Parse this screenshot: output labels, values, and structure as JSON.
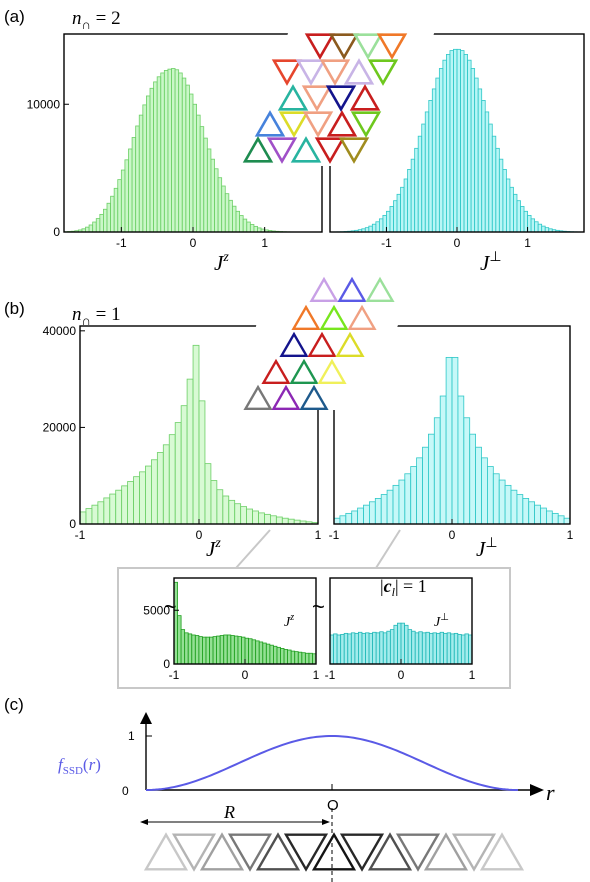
{
  "panels": {
    "a": "(a)",
    "b": "(b)",
    "c": "(c)"
  },
  "chart_data": [
    {
      "id": "a-left",
      "type": "bar",
      "color": "#9ef09a",
      "edge": "#6ccf66",
      "title": "n∩ = 2",
      "xlabel": "J^z",
      "xlim": [
        -1.8,
        1.8
      ],
      "ylim": [
        0,
        15500
      ],
      "xticks": [
        -1,
        0,
        1
      ],
      "xtick_labels": [
        "-1",
        "0",
        "1"
      ],
      "yticks": [
        0,
        10000
      ],
      "ytick_labels": [
        "0",
        "10000"
      ],
      "bin_width": 0.05,
      "x": [
        -1.775,
        -1.725,
        -1.675,
        -1.625,
        -1.575,
        -1.525,
        -1.475,
        -1.425,
        -1.375,
        -1.325,
        -1.275,
        -1.225,
        -1.175,
        -1.125,
        -1.075,
        -1.025,
        -0.975,
        -0.925,
        -0.875,
        -0.825,
        -0.775,
        -0.725,
        -0.675,
        -0.625,
        -0.575,
        -0.525,
        -0.475,
        -0.425,
        -0.375,
        -0.325,
        -0.275,
        -0.225,
        -0.175,
        -0.125,
        -0.075,
        -0.025,
        0.025,
        0.075,
        0.125,
        0.175,
        0.225,
        0.275,
        0.325,
        0.375,
        0.425,
        0.475,
        0.525,
        0.575,
        0.625,
        0.675,
        0.725,
        0.775,
        0.825,
        0.875,
        0.925,
        0.975,
        1.025,
        1.075,
        1.125,
        1.175,
        1.225,
        1.275,
        1.325,
        1.375,
        1.425,
        1.475,
        1.525,
        1.575,
        1.625,
        1.675,
        1.725,
        1.775
      ],
      "values": [
        20,
        40,
        60,
        100,
        160,
        250,
        380,
        550,
        780,
        1050,
        1380,
        1780,
        2250,
        2800,
        3420,
        4100,
        4850,
        5650,
        6500,
        7400,
        8300,
        9150,
        9950,
        10650,
        11250,
        11750,
        12150,
        12450,
        12650,
        12750,
        12800,
        12700,
        12450,
        12050,
        11500,
        10800,
        10000,
        9150,
        8250,
        7350,
        6500,
        5700,
        4950,
        4250,
        3600,
        3000,
        2480,
        2020,
        1620,
        1290,
        1010,
        780,
        590,
        440,
        320,
        230,
        165,
        115,
        80,
        55,
        38,
        25,
        16,
        10,
        6,
        4,
        2,
        1,
        0,
        0,
        0,
        0
      ]
    },
    {
      "id": "a-right",
      "type": "bar",
      "color": "#7deeee",
      "edge": "#2ec7c7",
      "xlabel": "J^⊥",
      "xlim": [
        -1.8,
        1.8
      ],
      "ylim": [
        0,
        15500
      ],
      "xticks": [
        -1,
        0,
        1
      ],
      "xtick_labels": [
        "-1",
        "0",
        "1"
      ],
      "bin_width": 0.05,
      "x": [
        -1.775,
        -1.725,
        -1.675,
        -1.625,
        -1.575,
        -1.525,
        -1.475,
        -1.425,
        -1.375,
        -1.325,
        -1.275,
        -1.225,
        -1.175,
        -1.125,
        -1.075,
        -1.025,
        -0.975,
        -0.925,
        -0.875,
        -0.825,
        -0.775,
        -0.725,
        -0.675,
        -0.625,
        -0.575,
        -0.525,
        -0.475,
        -0.425,
        -0.375,
        -0.325,
        -0.275,
        -0.225,
        -0.175,
        -0.125,
        -0.075,
        -0.025,
        0.025,
        0.075,
        0.125,
        0.175,
        0.225,
        0.275,
        0.325,
        0.375,
        0.425,
        0.475,
        0.525,
        0.575,
        0.625,
        0.675,
        0.725,
        0.775,
        0.825,
        0.875,
        0.925,
        0.975,
        1.025,
        1.075,
        1.125,
        1.175,
        1.225,
        1.275,
        1.325,
        1.375,
        1.425,
        1.475,
        1.525,
        1.575,
        1.625,
        1.675,
        1.725,
        1.775
      ],
      "values": [
        5,
        10,
        15,
        25,
        40,
        60,
        90,
        130,
        180,
        250,
        340,
        460,
        610,
        800,
        1030,
        1300,
        1620,
        2000,
        2450,
        2950,
        3500,
        4150,
        4900,
        5700,
        6550,
        7500,
        8450,
        9400,
        10300,
        11200,
        12050,
        12800,
        13450,
        13900,
        14200,
        14300,
        14300,
        14200,
        13900,
        13450,
        12800,
        12050,
        11200,
        10300,
        9400,
        8450,
        7500,
        6550,
        5700,
        4900,
        4150,
        3500,
        2950,
        2450,
        2000,
        1620,
        1300,
        1030,
        800,
        610,
        460,
        340,
        250,
        180,
        130,
        90,
        60,
        40,
        25,
        15,
        10,
        5
      ]
    },
    {
      "id": "b-left",
      "type": "bar",
      "color": "#b8f5b0",
      "edge": "#6ccf66",
      "title": "n∩ = 1",
      "xlabel": "J^z",
      "xlim": [
        -1,
        1
      ],
      "ylim": [
        0,
        41000
      ],
      "xticks": [
        -1,
        0,
        1
      ],
      "xtick_labels": [
        "-1",
        "0",
        "1"
      ],
      "yticks": [
        0,
        20000,
        40000
      ],
      "ytick_labels": [
        "0",
        "20000",
        "40000"
      ],
      "bin_width": 0.05,
      "x": [
        -0.975,
        -0.925,
        -0.875,
        -0.825,
        -0.775,
        -0.725,
        -0.675,
        -0.625,
        -0.575,
        -0.525,
        -0.475,
        -0.425,
        -0.375,
        -0.325,
        -0.275,
        -0.225,
        -0.175,
        -0.125,
        -0.075,
        -0.025,
        0.025,
        0.075,
        0.125,
        0.175,
        0.225,
        0.275,
        0.325,
        0.375,
        0.425,
        0.475,
        0.525,
        0.575,
        0.625,
        0.675,
        0.725,
        0.775,
        0.825,
        0.875,
        0.925,
        0.975
      ],
      "values": [
        2500,
        3200,
        3900,
        4600,
        5400,
        6200,
        7000,
        7900,
        8800,
        9800,
        10800,
        12000,
        13300,
        14800,
        16400,
        18500,
        21000,
        24500,
        30000,
        37000,
        25500,
        12500,
        9000,
        7100,
        5800,
        4900,
        4200,
        3600,
        3100,
        2700,
        2300,
        2000,
        1700,
        1450,
        1200,
        1000,
        800,
        620,
        450,
        300
      ]
    },
    {
      "id": "b-right",
      "type": "bar",
      "color": "#98f2f2",
      "edge": "#2ec7c7",
      "xlabel": "J^⊥",
      "xlim": [
        -1,
        1
      ],
      "ylim": [
        0,
        41000
      ],
      "xticks": [
        -1,
        0,
        1
      ],
      "xtick_labels": [
        "-1",
        "0",
        "1"
      ],
      "bin_width": 0.05,
      "x": [
        -0.975,
        -0.925,
        -0.875,
        -0.825,
        -0.775,
        -0.725,
        -0.675,
        -0.625,
        -0.575,
        -0.525,
        -0.475,
        -0.425,
        -0.375,
        -0.325,
        -0.275,
        -0.225,
        -0.175,
        -0.125,
        -0.075,
        -0.025,
        0.025,
        0.075,
        0.125,
        0.175,
        0.225,
        0.275,
        0.325,
        0.375,
        0.425,
        0.475,
        0.525,
        0.575,
        0.625,
        0.675,
        0.725,
        0.775,
        0.825,
        0.875,
        0.925,
        0.975
      ],
      "values": [
        1200,
        1700,
        2200,
        2700,
        3300,
        3900,
        4600,
        5300,
        6100,
        7000,
        8000,
        9100,
        10400,
        11900,
        13700,
        15900,
        18600,
        22000,
        26500,
        34500,
        34500,
        26500,
        22000,
        18600,
        15900,
        13700,
        11900,
        10400,
        9100,
        8000,
        7000,
        6100,
        5300,
        4600,
        3900,
        3300,
        2700,
        2200,
        1700,
        1200
      ]
    },
    {
      "id": "inset-left",
      "type": "bar",
      "color": "#3cc63c",
      "edge": "#1e9e1e",
      "title": "|c_l| = 1",
      "xlabel": "J^z",
      "xlim": [
        -1,
        1
      ],
      "ylim": [
        0,
        8000
      ],
      "xticks": [
        -1,
        0,
        1
      ],
      "xtick_labels": [
        "-1",
        "0",
        "1"
      ],
      "yticks": [
        0,
        5000
      ],
      "ytick_labels": [
        "0",
        "5000"
      ],
      "bin_width": 0.05,
      "x": [
        -0.975,
        -0.925,
        -0.875,
        -0.825,
        -0.775,
        -0.725,
        -0.675,
        -0.625,
        -0.575,
        -0.525,
        -0.475,
        -0.425,
        -0.375,
        -0.325,
        -0.275,
        -0.225,
        -0.175,
        -0.125,
        -0.075,
        -0.025,
        0.025,
        0.075,
        0.125,
        0.175,
        0.225,
        0.275,
        0.325,
        0.375,
        0.425,
        0.475,
        0.525,
        0.575,
        0.625,
        0.675,
        0.725,
        0.775,
        0.825,
        0.875,
        0.925,
        0.975
      ],
      "values": [
        7600,
        4500,
        3200,
        2900,
        2800,
        2700,
        2650,
        2550,
        2500,
        2500,
        2500,
        2550,
        2600,
        2650,
        2700,
        2700,
        2650,
        2600,
        2550,
        2500,
        2400,
        2350,
        2250,
        2150,
        2050,
        1950,
        1850,
        1750,
        1650,
        1550,
        1450,
        1350,
        1300,
        1200,
        1150,
        1100,
        1050,
        1000,
        1000,
        950
      ]
    },
    {
      "id": "inset-right",
      "type": "bar",
      "color": "#57dddd",
      "edge": "#22b8b8",
      "xlabel": "J^⊥",
      "xlim": [
        -1,
        1
      ],
      "ylim": [
        0,
        8000
      ],
      "xticks": [
        -1,
        0,
        1
      ],
      "xtick_labels": [
        "-1",
        "0",
        "1"
      ],
      "bin_width": 0.05,
      "x": [
        -0.975,
        -0.925,
        -0.875,
        -0.825,
        -0.775,
        -0.725,
        -0.675,
        -0.625,
        -0.575,
        -0.525,
        -0.475,
        -0.425,
        -0.375,
        -0.325,
        -0.275,
        -0.225,
        -0.175,
        -0.125,
        -0.075,
        -0.025,
        0.025,
        0.075,
        0.125,
        0.175,
        0.225,
        0.275,
        0.325,
        0.375,
        0.425,
        0.475,
        0.525,
        0.575,
        0.625,
        0.675,
        0.725,
        0.775,
        0.825,
        0.875,
        0.925,
        0.975
      ],
      "values": [
        2700,
        2800,
        2700,
        2750,
        2850,
        2800,
        2900,
        2850,
        2950,
        2850,
        2900,
        2850,
        2950,
        2900,
        3000,
        2900,
        3050,
        3200,
        3600,
        3800,
        3800,
        3600,
        3200,
        3050,
        2900,
        3000,
        2900,
        2950,
        2850,
        2900,
        2850,
        2950,
        2850,
        2900,
        2800,
        2850,
        2750,
        2700,
        2800,
        2700
      ]
    },
    {
      "id": "c-curve",
      "type": "line",
      "color": "#5a5ae6",
      "ylabel": "f_SSD(r)",
      "xlabel": "r",
      "xlim": [
        -1,
        1
      ],
      "ylim": [
        0,
        1
      ],
      "yticks": [
        0,
        1
      ],
      "ytick_labels": [
        "0",
        "1"
      ],
      "origin_label": "O",
      "distance_label": "R",
      "x": [
        -1,
        -0.9,
        -0.8,
        -0.7,
        -0.6,
        -0.5,
        -0.4,
        -0.3,
        -0.2,
        -0.1,
        0,
        0.1,
        0.2,
        0.3,
        0.4,
        0.5,
        0.6,
        0.7,
        0.8,
        0.9,
        1
      ],
      "y": [
        0,
        0.0245,
        0.0955,
        0.2061,
        0.3455,
        0.5,
        0.6545,
        0.7939,
        0.9045,
        0.9755,
        1,
        0.9755,
        0.9045,
        0.7939,
        0.6545,
        0.5,
        0.3455,
        0.2061,
        0.0955,
        0.0245,
        0
      ]
    }
  ],
  "lattices": {
    "a": {
      "rows": [
        [
          {
            "d": "down",
            "c": "#c81e1e"
          },
          {
            "d": "down",
            "c": "#8b5a1e"
          },
          {
            "d": "down",
            "c": "#9be09b"
          },
          {
            "d": "down",
            "c": "#f07828"
          }
        ],
        [
          {
            "d": "down",
            "c": "#e6462d"
          },
          {
            "d": "down",
            "c": "#c8b4e6"
          },
          {
            "d": "down",
            "c": "#f0a082"
          },
          {
            "d": "up",
            "c": "#c8b4e6"
          },
          {
            "d": "down",
            "c": "#6ec81e"
          }
        ],
        [
          {
            "d": "up",
            "c": "#28b4a0"
          },
          {
            "d": "down",
            "c": "#f0a082"
          },
          {
            "d": "down",
            "c": "#14148c"
          },
          {
            "d": "up",
            "c": "#c81e1e"
          }
        ],
        [
          {
            "d": "up",
            "c": "#4682dc"
          },
          {
            "d": "down",
            "c": "#dcdc28"
          },
          {
            "d": "down",
            "c": "#f0a082"
          },
          {
            "d": "up",
            "c": "#c81e1e"
          },
          {
            "d": "down",
            "c": "#6ec81e"
          }
        ],
        [
          {
            "d": "up",
            "c": "#1e8c50"
          },
          {
            "d": "down",
            "c": "#a050c8"
          },
          {
            "d": "up",
            "c": "#28b4a0"
          },
          {
            "d": "down",
            "c": "#c81e1e"
          },
          {
            "d": "down",
            "c": "#a08c1e"
          }
        ]
      ]
    },
    "b": {
      "rows": [
        [
          {
            "d": "up",
            "c": "#c8a0e6"
          },
          {
            "d": "up",
            "c": "#5a5ae6"
          },
          {
            "d": "up",
            "c": "#9be09b"
          }
        ],
        [
          {
            "d": "up",
            "c": "#f07828"
          },
          {
            "d": "up",
            "c": "#78e61e"
          },
          {
            "d": "up",
            "c": "#f0a082"
          }
        ],
        [
          {
            "d": "up",
            "c": "#14148c"
          },
          {
            "d": "up",
            "c": "#c81e1e"
          },
          {
            "d": "up",
            "c": "#dcdc28"
          }
        ],
        [
          {
            "d": "up",
            "c": "#c81e1e"
          },
          {
            "d": "up",
            "c": "#1e9650"
          },
          {
            "d": "up",
            "c": "#f0f05a"
          }
        ],
        [
          {
            "d": "up",
            "c": "#787878"
          },
          {
            "d": "up",
            "c": "#8c28b4"
          },
          {
            "d": "up",
            "c": "#1e5a8c"
          }
        ]
      ]
    },
    "c": {
      "row": [
        {
          "d": "up",
          "c": "#c8c8c8"
        },
        {
          "d": "down",
          "c": "#b4b4b4"
        },
        {
          "d": "up",
          "c": "#a0a0a0"
        },
        {
          "d": "down",
          "c": "#787878"
        },
        {
          "d": "up",
          "c": "#505050"
        },
        {
          "d": "down",
          "c": "#282828"
        },
        {
          "d": "up",
          "c": "#141414"
        },
        {
          "d": "down",
          "c": "#282828"
        },
        {
          "d": "up",
          "c": "#505050"
        },
        {
          "d": "down",
          "c": "#787878"
        },
        {
          "d": "up",
          "c": "#a0a0a0"
        },
        {
          "d": "down",
          "c": "#b4b4b4"
        },
        {
          "d": "up",
          "c": "#c8c8c8"
        }
      ]
    }
  }
}
